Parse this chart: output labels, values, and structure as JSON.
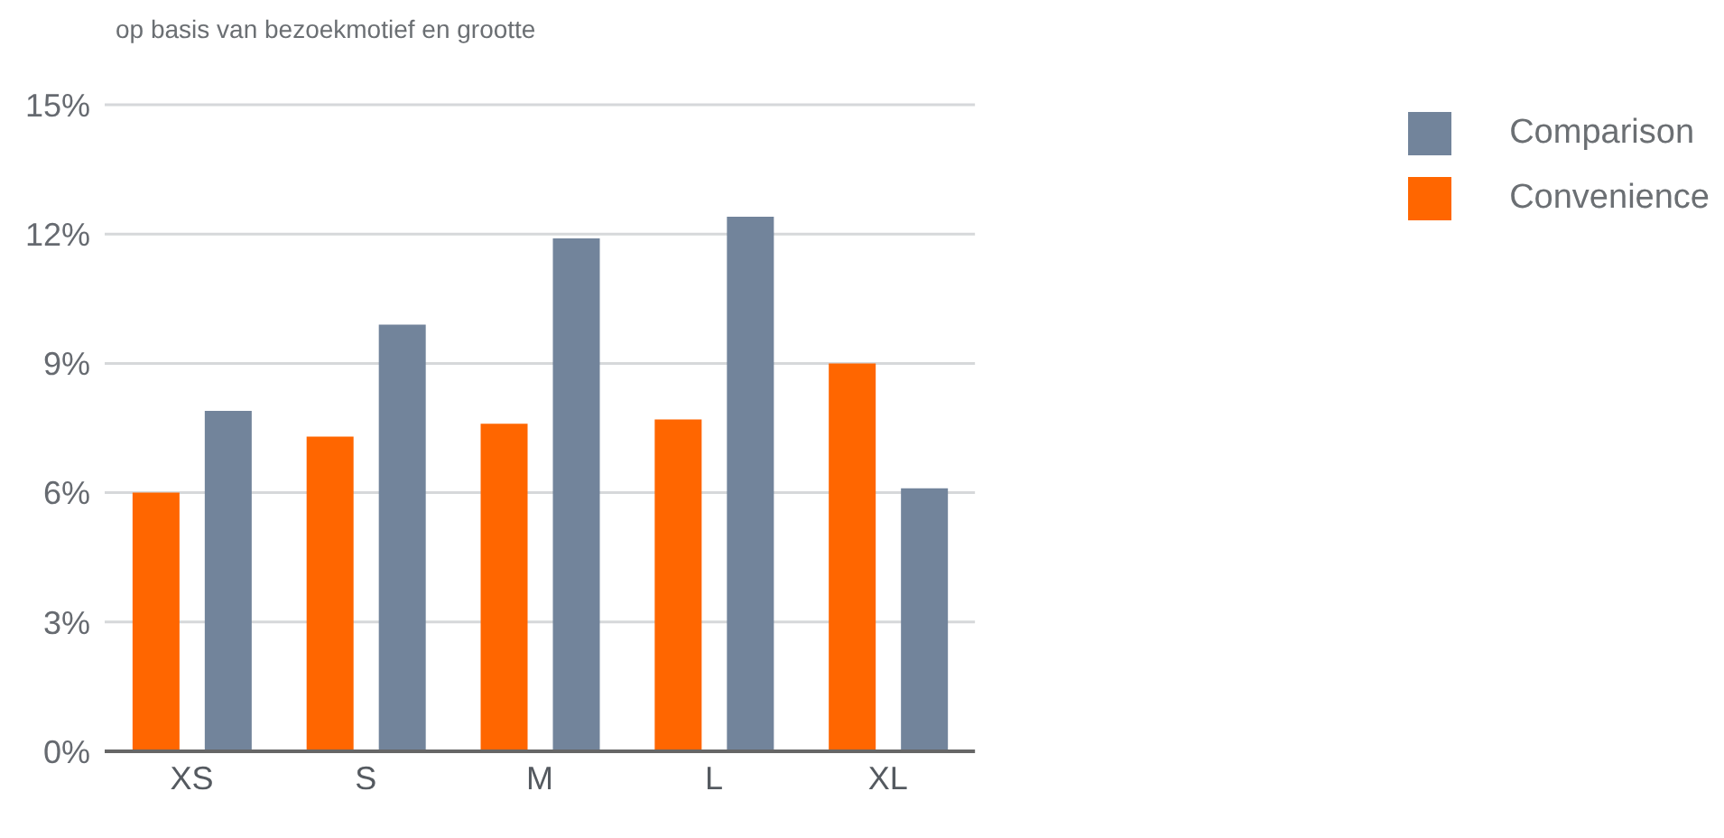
{
  "chart_data": {
    "type": "bar",
    "subtitle": "op basis van bezoekmotief en grootte",
    "categories": [
      "XS",
      "S",
      "M",
      "L",
      "XL"
    ],
    "series": [
      {
        "name": "Comparison",
        "color": "#72849b",
        "values": [
          7.9,
          9.9,
          11.9,
          12.4,
          6.1
        ]
      },
      {
        "name": "Convenience",
        "color": "#ff6600",
        "values": [
          6.0,
          7.3,
          7.6,
          7.7,
          9.0
        ]
      }
    ],
    "ylim": [
      0,
      15
    ],
    "yticks": [
      {
        "value": 0,
        "label": "0%"
      },
      {
        "value": 3,
        "label": "3%"
      },
      {
        "value": 6,
        "label": "6%"
      },
      {
        "value": 9,
        "label": "9%"
      },
      {
        "value": 12,
        "label": "12%"
      },
      {
        "value": 15,
        "label": "15%"
      }
    ],
    "grid": "y",
    "legend": "top right"
  }
}
